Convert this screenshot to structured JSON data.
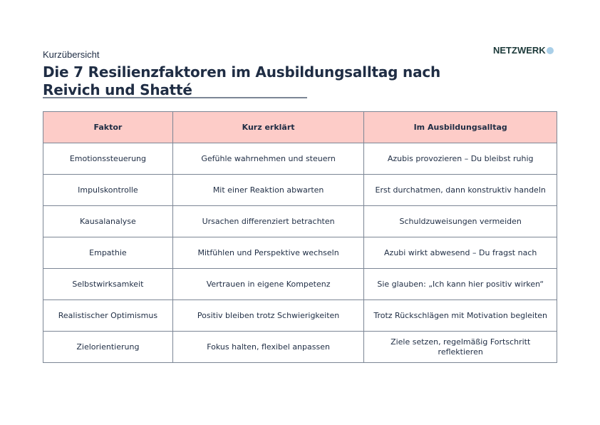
{
  "subtitle": "Kurzübersicht",
  "title_line1": "Die 7 Resilienzfaktoren im Ausbildungsalltag nach",
  "title_line2": "Reivich und Shatté",
  "logo": "NETZWERK",
  "colors": {
    "header_bg": "#fdccc8",
    "text": "#1f2d44",
    "border": "#7c8695"
  },
  "table": {
    "headers": [
      "Faktor",
      "Kurz erklärt",
      "Im Ausbildungsalltag"
    ],
    "rows": [
      [
        "Emotionssteuerung",
        "Gefühle wahrnehmen und steuern",
        "Azubis provozieren – Du bleibst ruhig"
      ],
      [
        "Impulskontrolle",
        "Mit einer Reaktion abwarten",
        "Erst durchatmen, dann konstruktiv handeln"
      ],
      [
        "Kausalanalyse",
        "Ursachen differenziert betrachten",
        "Schuldzuweisungen vermeiden"
      ],
      [
        "Empathie",
        "Mitfühlen und Perspektive wechseln",
        "Azubi wirkt abwesend – Du fragst nach"
      ],
      [
        "Selbstwirksamkeit",
        "Vertrauen in eigene Kompetenz",
        "Sie glauben: „Ich kann hier positiv wirken“"
      ],
      [
        "Realistischer Optimismus",
        "Positiv bleiben trotz Schwierigkeiten",
        "Trotz Rückschlägen mit Motivation begleiten"
      ],
      [
        "Zielorientierung",
        "Fokus halten, flexibel anpassen",
        "Ziele setzen, regelmäßig Fortschritt reflektieren"
      ]
    ]
  }
}
